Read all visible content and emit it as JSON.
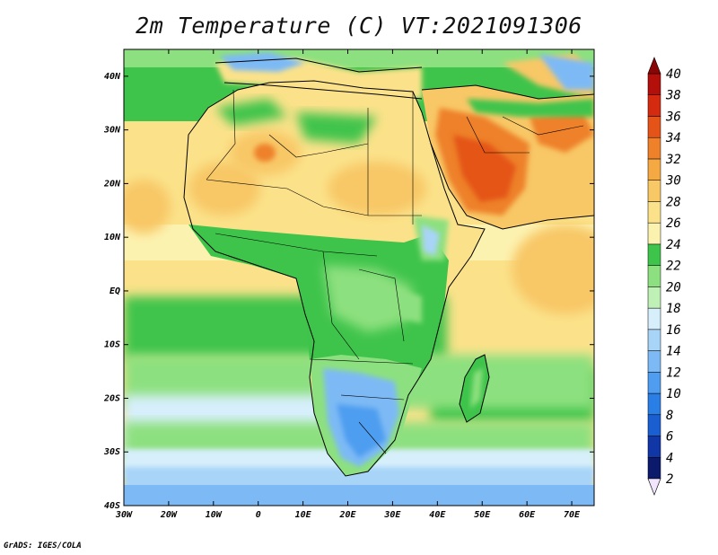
{
  "title": "2m Temperature (C) VT:2021091306",
  "credit": "GrADS: IGES/COLA",
  "chart_data": {
    "type": "heatmap",
    "title": "2m Temperature (C) VT:2021091306",
    "lon_range": [
      -30,
      75
    ],
    "lat_range": [
      -40,
      45
    ],
    "x_ticks": [
      "30W",
      "20W",
      "10W",
      "0",
      "10E",
      "20E",
      "30E",
      "40E",
      "50E",
      "60E",
      "70E"
    ],
    "x_tick_values": [
      -30,
      -20,
      -10,
      0,
      10,
      20,
      30,
      40,
      50,
      60,
      70
    ],
    "y_ticks": [
      "40S",
      "30S",
      "20S",
      "10S",
      "EQ",
      "10N",
      "20N",
      "30N",
      "40N"
    ],
    "y_tick_values": [
      -40,
      -30,
      -20,
      -10,
      0,
      10,
      20,
      30,
      40
    ],
    "colorbar": {
      "levels": [
        2,
        4,
        6,
        8,
        10,
        12,
        14,
        16,
        18,
        20,
        22,
        24,
        26,
        28,
        30,
        32,
        34,
        36,
        38,
        40
      ],
      "labels": [
        "2",
        "4",
        "6",
        "8",
        "10",
        "12",
        "14",
        "16",
        "18",
        "20",
        "22",
        "24",
        "26",
        "28",
        "30",
        "32",
        "34",
        "36",
        "38",
        "40"
      ],
      "colors": [
        "#f2e6ff",
        "#0c1a6b",
        "#1136a6",
        "#1a5fd1",
        "#2a7fe6",
        "#4e9df0",
        "#7dbaf5",
        "#a8d4f8",
        "#d6effb",
        "#bff0b5",
        "#8de07f",
        "#3fc44b",
        "#fcf2b0",
        "#fbe28a",
        "#f8c766",
        "#f5a943",
        "#ee8129",
        "#e45419",
        "#d42a10",
        "#b30f0b",
        "#8a0505"
      ],
      "extend_low_color": "#f2e6ff",
      "extend_high_color": "#8a0505"
    }
  }
}
